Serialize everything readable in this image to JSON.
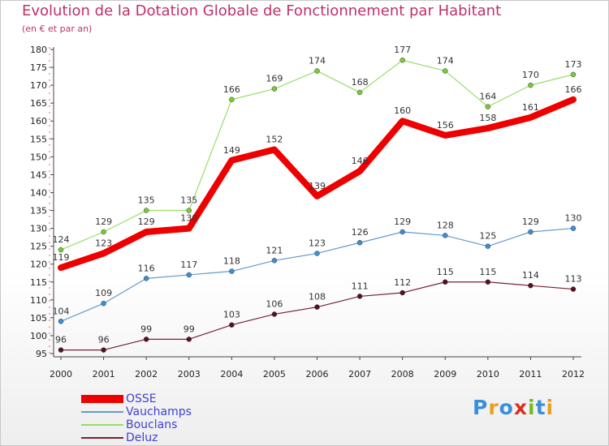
{
  "title": "Evolution de la Dotation Globale de Fonctionnement par Habitant",
  "subtitle": "(en € et par an)",
  "logo": {
    "text": "Proxiti",
    "letters": [
      "P",
      "r",
      "o",
      "x",
      "i",
      "t",
      "i"
    ],
    "colors": [
      "#3b8fd8",
      "#e8a020",
      "#3b8fd8",
      "#d83020",
      "#7ab828",
      "#3b8fd8",
      "#e8a020"
    ]
  },
  "chart_data": {
    "type": "line",
    "title": "Evolution de la Dotation Globale de Fonctionnement par Habitant",
    "subtitle": "(en € et par an)",
    "xlabel": "",
    "ylabel": "",
    "ylim": [
      95,
      180
    ],
    "y_ticks": [
      95,
      100,
      105,
      110,
      115,
      120,
      125,
      130,
      135,
      140,
      145,
      150,
      155,
      160,
      165,
      170,
      175,
      180
    ],
    "grid": false,
    "legend_position": "bottom-left",
    "x": [
      "2000",
      "2001",
      "2002",
      "2003",
      "2004",
      "2005",
      "2006",
      "2007",
      "2008",
      "2009",
      "2010",
      "2011",
      "2012"
    ],
    "series": [
      {
        "name": "Bouclans",
        "color": "#99dd66",
        "marker_color": "#7acc33",
        "values": [
          124,
          129,
          135,
          135,
          166,
          169,
          174,
          168,
          177,
          174,
          164,
          170,
          173
        ]
      },
      {
        "name": "Vauchamps",
        "color": "#6699cc",
        "marker_color": "#3b8fd8",
        "values": [
          104,
          109,
          116,
          117,
          118,
          121,
          123,
          126,
          129,
          128,
          125,
          129,
          130
        ]
      },
      {
        "name": "Deluz",
        "color": "#772233",
        "marker_color": "#551122",
        "values": [
          96,
          96,
          99,
          99,
          103,
          106,
          108,
          111,
          112,
          115,
          115,
          114,
          113
        ]
      },
      {
        "name": "OSSE",
        "color": "#ee0000",
        "marker_color": "#ee0000",
        "values": [
          119,
          123,
          129,
          130,
          149,
          152,
          139,
          146,
          160,
          156,
          158,
          161,
          166
        ]
      }
    ],
    "legend_order": [
      "OSSE",
      "Vauchamps",
      "Bouclans",
      "Deluz"
    ]
  }
}
